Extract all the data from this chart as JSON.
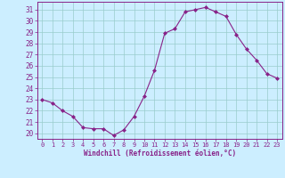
{
  "x": [
    0,
    1,
    2,
    3,
    4,
    5,
    6,
    7,
    8,
    9,
    10,
    11,
    12,
    13,
    14,
    15,
    16,
    17,
    18,
    19,
    20,
    21,
    22,
    23
  ],
  "y": [
    23.0,
    22.7,
    22.0,
    21.5,
    20.5,
    20.4,
    20.4,
    19.8,
    20.3,
    21.5,
    23.3,
    25.6,
    28.9,
    29.3,
    30.8,
    31.0,
    31.2,
    30.8,
    30.4,
    28.8,
    27.5,
    26.5,
    25.3,
    24.9
  ],
  "line_color": "#882288",
  "marker": "D",
  "marker_size": 2.0,
  "bg_color": "#cceeff",
  "grid_color": "#99cccc",
  "xlabel": "Windchill (Refroidissement éolien,°C)",
  "ylabel": "",
  "ylim": [
    19.5,
    31.7
  ],
  "yticks": [
    20,
    21,
    22,
    23,
    24,
    25,
    26,
    27,
    28,
    29,
    30,
    31
  ],
  "xticks": [
    0,
    1,
    2,
    3,
    4,
    5,
    6,
    7,
    8,
    9,
    10,
    11,
    12,
    13,
    14,
    15,
    16,
    17,
    18,
    19,
    20,
    21,
    22,
    23
  ],
  "axis_color": "#882288",
  "label_color": "#882288",
  "tick_color": "#882288"
}
